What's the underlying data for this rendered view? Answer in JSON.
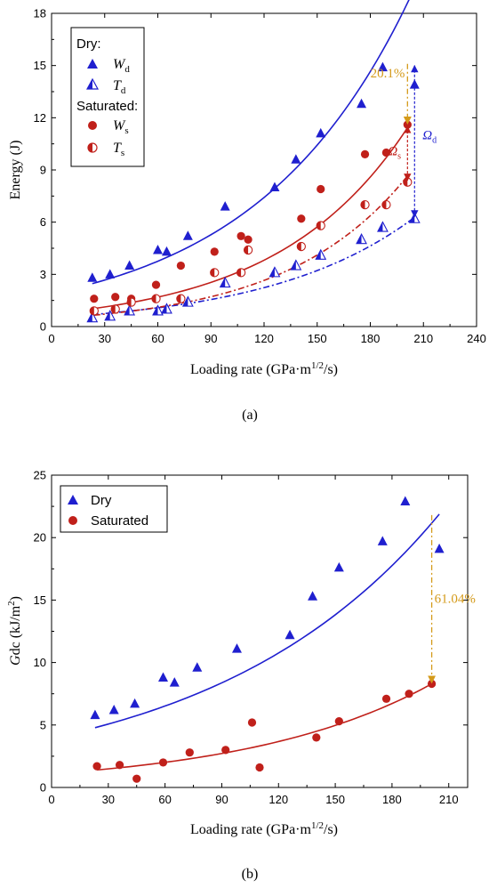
{
  "chart_data": [
    {
      "panel_label": "(a)",
      "type": "scatter",
      "ylabel": "Energy (J)",
      "xlabel": "Loading rate (GPa·m",
      "xlabel_sup": "1/2",
      "xlabel_tail": "/s)",
      "xlim": [
        0,
        240
      ],
      "ylim": [
        0,
        18
      ],
      "xticks": [
        0,
        30,
        60,
        90,
        120,
        150,
        180,
        210,
        240
      ],
      "yticks": [
        0,
        3,
        6,
        9,
        12,
        15,
        18
      ],
      "legend_placement": "top-left",
      "legend": {
        "dry_title": "Dry:",
        "saturated_title": "Saturated:",
        "Wd": {
          "sym": "W",
          "sub": "d"
        },
        "Td": {
          "sym": "T",
          "sub": "d"
        },
        "Ws": {
          "sym": "W",
          "sub": "s"
        },
        "Ts": {
          "sym": "T",
          "sub": "s"
        }
      },
      "series": [
        {
          "key": "Wd",
          "color": "#1f1fcf",
          "marker": "filled-triangle",
          "x": [
            23,
            33,
            44,
            60,
            65,
            77,
            98,
            126,
            138,
            152,
            175,
            187,
            205
          ],
          "y": [
            2.8,
            3.0,
            3.5,
            4.4,
            4.3,
            5.2,
            6.9,
            8.0,
            9.6,
            11.1,
            12.8,
            14.9,
            13.9
          ],
          "fit": {
            "style": "solid",
            "x": [
              23,
              205
            ],
            "a": 1.9,
            "b": 0.01135
          }
        },
        {
          "key": "Td",
          "color": "#1f1fcf",
          "marker": "half-triangle",
          "x": [
            23,
            33,
            44,
            60,
            65,
            77,
            98,
            126,
            138,
            152,
            175,
            187,
            205
          ],
          "y": [
            0.5,
            0.6,
            0.9,
            0.9,
            1.0,
            1.4,
            2.5,
            3.1,
            3.5,
            4.1,
            5.0,
            5.7,
            6.2
          ],
          "fit": {
            "style": "dashdot",
            "x": [
              23,
              205
            ],
            "a": 0.52,
            "b": 0.01215
          }
        },
        {
          "key": "Ws",
          "color": "#c0201a",
          "marker": "filled-circle",
          "x": [
            24,
            36,
            45,
            59,
            73,
            92,
            107,
            111,
            141,
            152,
            177,
            189,
            201
          ],
          "y": [
            1.6,
            1.7,
            1.6,
            2.4,
            3.5,
            4.3,
            5.2,
            5.0,
            6.2,
            7.9,
            9.9,
            10.0,
            11.6
          ],
          "fit": {
            "style": "solid",
            "x": [
              24,
              201
            ],
            "a": 0.75,
            "b": 0.01355
          }
        },
        {
          "key": "Ts",
          "color": "#c0201a",
          "marker": "half-circle",
          "x": [
            24,
            36,
            45,
            59,
            73,
            92,
            107,
            111,
            141,
            152,
            177,
            189,
            201
          ],
          "y": [
            0.9,
            1.0,
            1.4,
            1.6,
            1.6,
            3.1,
            3.1,
            4.4,
            4.6,
            5.8,
            7.0,
            7.0,
            8.3
          ],
          "fit": {
            "style": "dashdot",
            "x": [
              24,
              201
            ],
            "a": 0.46,
            "b": 0.0146
          }
        }
      ],
      "annotations": {
        "pct": "20.1%",
        "pct_color": "#d49a1a",
        "omega_s": {
          "sym": "Ω",
          "sub": "s"
        },
        "omega_d": {
          "sym": "Ω",
          "sub": "d"
        },
        "pct_arrow": {
          "x": 201,
          "y_from": 15.1,
          "y_to": 11.6
        },
        "omega_s_arrow": {
          "x": 201,
          "y_from": 11.6,
          "y_to": 8.3
        },
        "omega_d_arrow": {
          "x": 205,
          "y_from": 15.1,
          "y_to": 6.2
        }
      }
    },
    {
      "panel_label": "(b)",
      "type": "scatter",
      "ylabel_ital": "G",
      "ylabel_rest": "dc (kJ/m",
      "ylabel_sup": "2",
      "ylabel_tail": ")",
      "xlabel": "Loading rate (GPa·m",
      "xlabel_sup": "1/2",
      "xlabel_tail": "/s)",
      "xlim": [
        0,
        220
      ],
      "ylim": [
        0,
        25
      ],
      "xticks": [
        0,
        30,
        60,
        90,
        120,
        150,
        180,
        210
      ],
      "yticks": [
        0,
        5,
        10,
        15,
        20,
        25
      ],
      "legend_placement": "top-left",
      "series": [
        {
          "name": "Dry",
          "color": "#1f1fcf",
          "marker": "filled-triangle",
          "x": [
            23,
            33,
            44,
            59,
            65,
            77,
            98,
            126,
            138,
            152,
            175,
            187,
            205
          ],
          "y": [
            5.8,
            6.2,
            6.7,
            8.8,
            8.4,
            9.6,
            11.1,
            12.2,
            15.3,
            17.6,
            19.7,
            22.9,
            19.1
          ],
          "fit": {
            "style": "solid",
            "x": [
              23,
              205
            ],
            "a": 3.95,
            "b": 0.00835
          }
        },
        {
          "name": "Saturated",
          "color": "#c0201a",
          "marker": "filled-circle",
          "x": [
            24,
            36,
            45,
            59,
            73,
            92,
            106,
            110,
            140,
            152,
            177,
            189,
            201
          ],
          "y": [
            1.7,
            1.8,
            0.7,
            2.0,
            2.8,
            3.0,
            5.2,
            1.6,
            4.0,
            5.3,
            7.1,
            7.5,
            8.3
          ],
          "fit": {
            "style": "solid",
            "x": [
              24,
              201
            ],
            "a": 1.1,
            "b": 0.01005
          }
        }
      ],
      "annotations": {
        "pct": "61.04%",
        "pct_color": "#d49a1a",
        "pct_arrow": {
          "x": 201,
          "y_from": 21.8,
          "y_to": 8.3
        }
      }
    }
  ]
}
